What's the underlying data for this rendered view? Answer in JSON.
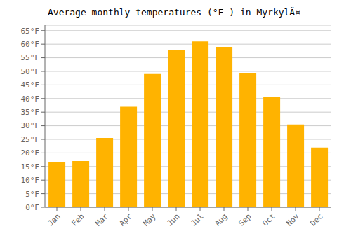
{
  "chart_data": {
    "type": "bar",
    "title": "Average monthly temperatures (°F ) in MyrkylÃ¤",
    "categories": [
      "Jan",
      "Feb",
      "Mar",
      "Apr",
      "May",
      "Jun",
      "Jul",
      "Aug",
      "Sep",
      "Oct",
      "Nov",
      "Dec"
    ],
    "values": [
      16.5,
      17.0,
      25.5,
      37.0,
      49.0,
      58.0,
      61.0,
      59.0,
      49.5,
      40.5,
      30.5,
      22.0
    ],
    "color": "#FFB300",
    "ylim": [
      0,
      67
    ],
    "yticks": [
      {
        "value": 0,
        "label": "0°F"
      },
      {
        "value": 5,
        "label": "5°F"
      },
      {
        "value": 10,
        "label": "10°F"
      },
      {
        "value": 15,
        "label": "15°F"
      },
      {
        "value": 20,
        "label": "20°F"
      },
      {
        "value": 25,
        "label": "25°F"
      },
      {
        "value": 30,
        "label": "30°F"
      },
      {
        "value": 35,
        "label": "35°F"
      },
      {
        "value": 40,
        "label": "40°F"
      },
      {
        "value": 45,
        "label": "45°F"
      },
      {
        "value": 50,
        "label": "50°F"
      },
      {
        "value": 55,
        "label": "55°F"
      },
      {
        "value": 60,
        "label": "60°F"
      },
      {
        "value": 65,
        "label": "65°F"
      }
    ],
    "grid": true
  }
}
